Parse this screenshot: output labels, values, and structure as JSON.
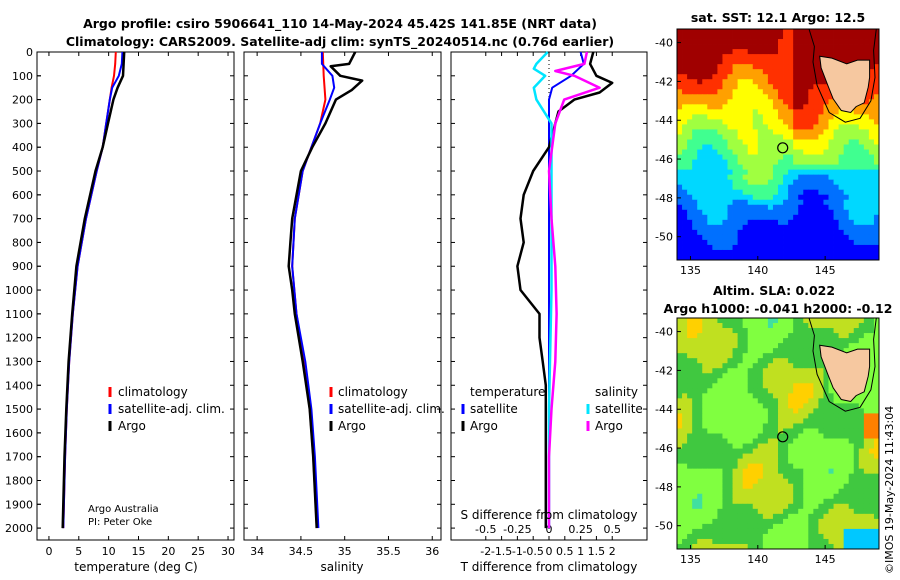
{
  "header": {
    "line1": "Argo profile: csiro 5906641_110 14-May-2024 45.42S 141.85E (NRT data)",
    "line2": "Climatology: CARS2009. Satellite-adj clim: synTS_20240514.nc (0.76d earlier)"
  },
  "colors": {
    "climatology": "#ff0000",
    "satellite_adj": "#0000ff",
    "argo": "#000000",
    "sat_salinity": "#00e5ff",
    "argo_salinity_diff": "#ff00ff"
  },
  "credits": {
    "line1": "Argo Australia",
    "line2": "PI: Peter Oke"
  },
  "watermark": "©IMOS 19-May-2024 11:43:04",
  "chart_data": [
    {
      "type": "line",
      "id": "temperature",
      "xlabel": "temperature (deg C)",
      "ylabel": "",
      "xlim": [
        -2,
        31
      ],
      "ylim": [
        2050,
        0
      ],
      "xticks": [
        0,
        5,
        10,
        15,
        20,
        25,
        30
      ],
      "yticks": [
        0,
        100,
        200,
        300,
        400,
        500,
        600,
        700,
        800,
        900,
        1000,
        1100,
        1200,
        1300,
        1400,
        1500,
        1600,
        1700,
        1800,
        1900,
        2000
      ],
      "legend": [
        "climatology",
        "satellite-adj. clim.",
        "Argo"
      ],
      "series": [
        {
          "name": "climatology",
          "depth": [
            0,
            50,
            100,
            150,
            200,
            300,
            400,
            500,
            700,
            900,
            1100,
            1300,
            1500,
            1700,
            2000
          ],
          "values": [
            11.2,
            11.1,
            10.9,
            10.5,
            10.2,
            9.6,
            9.0,
            8.0,
            6.2,
            4.8,
            4.0,
            3.4,
            3.0,
            2.7,
            2.4
          ]
        },
        {
          "name": "satellite-adj. clim.",
          "depth": [
            0,
            50,
            100,
            150,
            200,
            300,
            400,
            500,
            700,
            900,
            1100,
            1300,
            1500,
            1700,
            2000
          ],
          "values": [
            12.3,
            12.2,
            11.7,
            10.6,
            10.2,
            9.6,
            9.0,
            8.0,
            6.2,
            4.8,
            4.0,
            3.4,
            3.0,
            2.7,
            2.4
          ]
        },
        {
          "name": "Argo",
          "depth": [
            0,
            50,
            100,
            150,
            200,
            300,
            400,
            500,
            700,
            900,
            1100,
            1300,
            1500,
            1700,
            2000
          ],
          "values": [
            12.6,
            12.5,
            12.4,
            11.5,
            10.8,
            9.9,
            9.0,
            7.8,
            6.0,
            4.6,
            3.9,
            3.3,
            2.9,
            2.6,
            2.3
          ]
        }
      ]
    },
    {
      "type": "line",
      "id": "salinity",
      "xlabel": "salinity",
      "ylabel": "",
      "xlim": [
        33.85,
        36.1
      ],
      "ylim": [
        2050,
        0
      ],
      "xticks": [
        34,
        34.5,
        35,
        35.5,
        36
      ],
      "legend": [
        "climatology",
        "satellite-adj. clim.",
        "Argo"
      ],
      "series": [
        {
          "name": "climatology",
          "depth": [
            0,
            100,
            200,
            300,
            400,
            500,
            700,
            900,
            1100,
            1300,
            1500,
            1700,
            2000
          ],
          "values": [
            34.75,
            34.76,
            34.78,
            34.72,
            34.62,
            34.52,
            34.43,
            34.4,
            34.45,
            34.53,
            34.6,
            34.64,
            34.68
          ]
        },
        {
          "name": "satellite-adj. clim.",
          "depth": [
            0,
            50,
            100,
            150,
            200,
            300,
            400,
            500,
            700,
            900,
            1100,
            1300,
            1500,
            1700,
            2000
          ],
          "values": [
            34.74,
            34.74,
            34.86,
            34.88,
            34.83,
            34.72,
            34.62,
            34.52,
            34.43,
            34.4,
            34.45,
            34.55,
            34.62,
            34.66,
            34.7
          ]
        },
        {
          "name": "Argo",
          "depth": [
            0,
            50,
            60,
            100,
            120,
            160,
            200,
            300,
            400,
            500,
            700,
            800,
            900,
            1000,
            1100,
            1300,
            1500,
            1700,
            2000
          ],
          "values": [
            35.12,
            35.05,
            34.84,
            34.95,
            35.2,
            35.08,
            34.9,
            34.78,
            34.63,
            34.5,
            34.4,
            34.38,
            34.36,
            34.4,
            34.43,
            34.52,
            34.6,
            34.64,
            34.68
          ]
        }
      ]
    },
    {
      "type": "line",
      "id": "difference",
      "xlabel": "T difference from climatology",
      "xlabel_top": "S difference from climatology",
      "xlim": [
        -3.1,
        3.1
      ],
      "ylim": [
        2050,
        0
      ],
      "xticks": [
        -2,
        -1.5,
        -1,
        -0.5,
        0,
        0.5,
        1,
        1.5,
        2
      ],
      "xtick_labels": [
        "-2",
        "-1.5",
        "-1",
        "-0.5",
        "0",
        "0.5",
        "1",
        "1.5",
        "2"
      ],
      "s_ticks": [
        -0.5,
        -0.25,
        0,
        0.25,
        0.5
      ],
      "s_tick_labels": [
        "-0.5",
        "-0.25",
        "0",
        "0.25",
        "0.5"
      ],
      "legend_left_title": "temperature",
      "legend_right_title": "salinity",
      "legend_left": [
        "satellite",
        "Argo"
      ],
      "legend_right": [
        "satellite",
        "Argo"
      ],
      "series": [
        {
          "name": "temperature satellite",
          "depth": [
            0,
            50,
            100,
            150,
            200,
            300,
            400,
            600,
            1000,
            1400,
            2000
          ],
          "values": [
            1.0,
            1.1,
            0.7,
            0.1,
            0.0,
            0.0,
            0.0,
            0.0,
            0.0,
            0.0,
            0.0
          ]
        },
        {
          "name": "temperature Argo",
          "depth": [
            0,
            50,
            100,
            130,
            170,
            200,
            250,
            300,
            400,
            500,
            600,
            700,
            800,
            900,
            1000,
            1100,
            1200,
            1300,
            1400,
            1500,
            1600,
            1800,
            2000
          ],
          "values": [
            1.4,
            1.3,
            1.5,
            2.0,
            1.6,
            0.8,
            0.3,
            0.2,
            0.0,
            -0.5,
            -0.8,
            -0.9,
            -0.8,
            -1.0,
            -0.9,
            -0.3,
            -0.3,
            -0.2,
            -0.1,
            -0.1,
            -0.1,
            -0.1,
            -0.1
          ]
        },
        {
          "name": "salinity satellite",
          "depth": [
            0,
            50,
            70,
            100,
            150,
            200,
            300,
            500,
            1000,
            1500,
            2000
          ],
          "values": [
            -0.01,
            -0.1,
            -0.12,
            -0.03,
            -0.12,
            -0.1,
            0.02,
            0.02,
            0.02,
            0.0,
            0.0
          ]
        },
        {
          "name": "salinity Argo",
          "depth": [
            0,
            50,
            80,
            100,
            150,
            200,
            300,
            500,
            700,
            900,
            1100,
            1300,
            1500,
            1700,
            2000
          ],
          "values": [
            0.3,
            0.28,
            0.05,
            0.2,
            0.4,
            0.12,
            0.05,
            0.0,
            0.02,
            0.05,
            0.06,
            0.05,
            0.02,
            0.0,
            0.0
          ]
        }
      ]
    },
    {
      "type": "heatmap",
      "id": "sst_map",
      "title": "sat. SST: 12.1 Argo: 12.5",
      "xlim": [
        134,
        149
      ],
      "ylim": [
        -51.2,
        -39.3
      ],
      "xticks": [
        135,
        140,
        145
      ],
      "yticks": [
        -40,
        -42,
        -44,
        -46,
        -48,
        -50
      ],
      "profile": {
        "lon": 141.85,
        "lat": -45.42
      }
    },
    {
      "type": "heatmap",
      "id": "sla_map",
      "title_line1": "Altim. SLA: 0.022",
      "title_line2": "Argo h1000: -0.041 h2000: -0.12",
      "xlim": [
        134,
        149
      ],
      "ylim": [
        -51.2,
        -39.3
      ],
      "xticks": [
        135,
        140,
        145
      ],
      "yticks": [
        -40,
        -42,
        -44,
        -46,
        -48,
        -50
      ],
      "profile": {
        "lon": 141.85,
        "lat": -45.42
      }
    }
  ]
}
